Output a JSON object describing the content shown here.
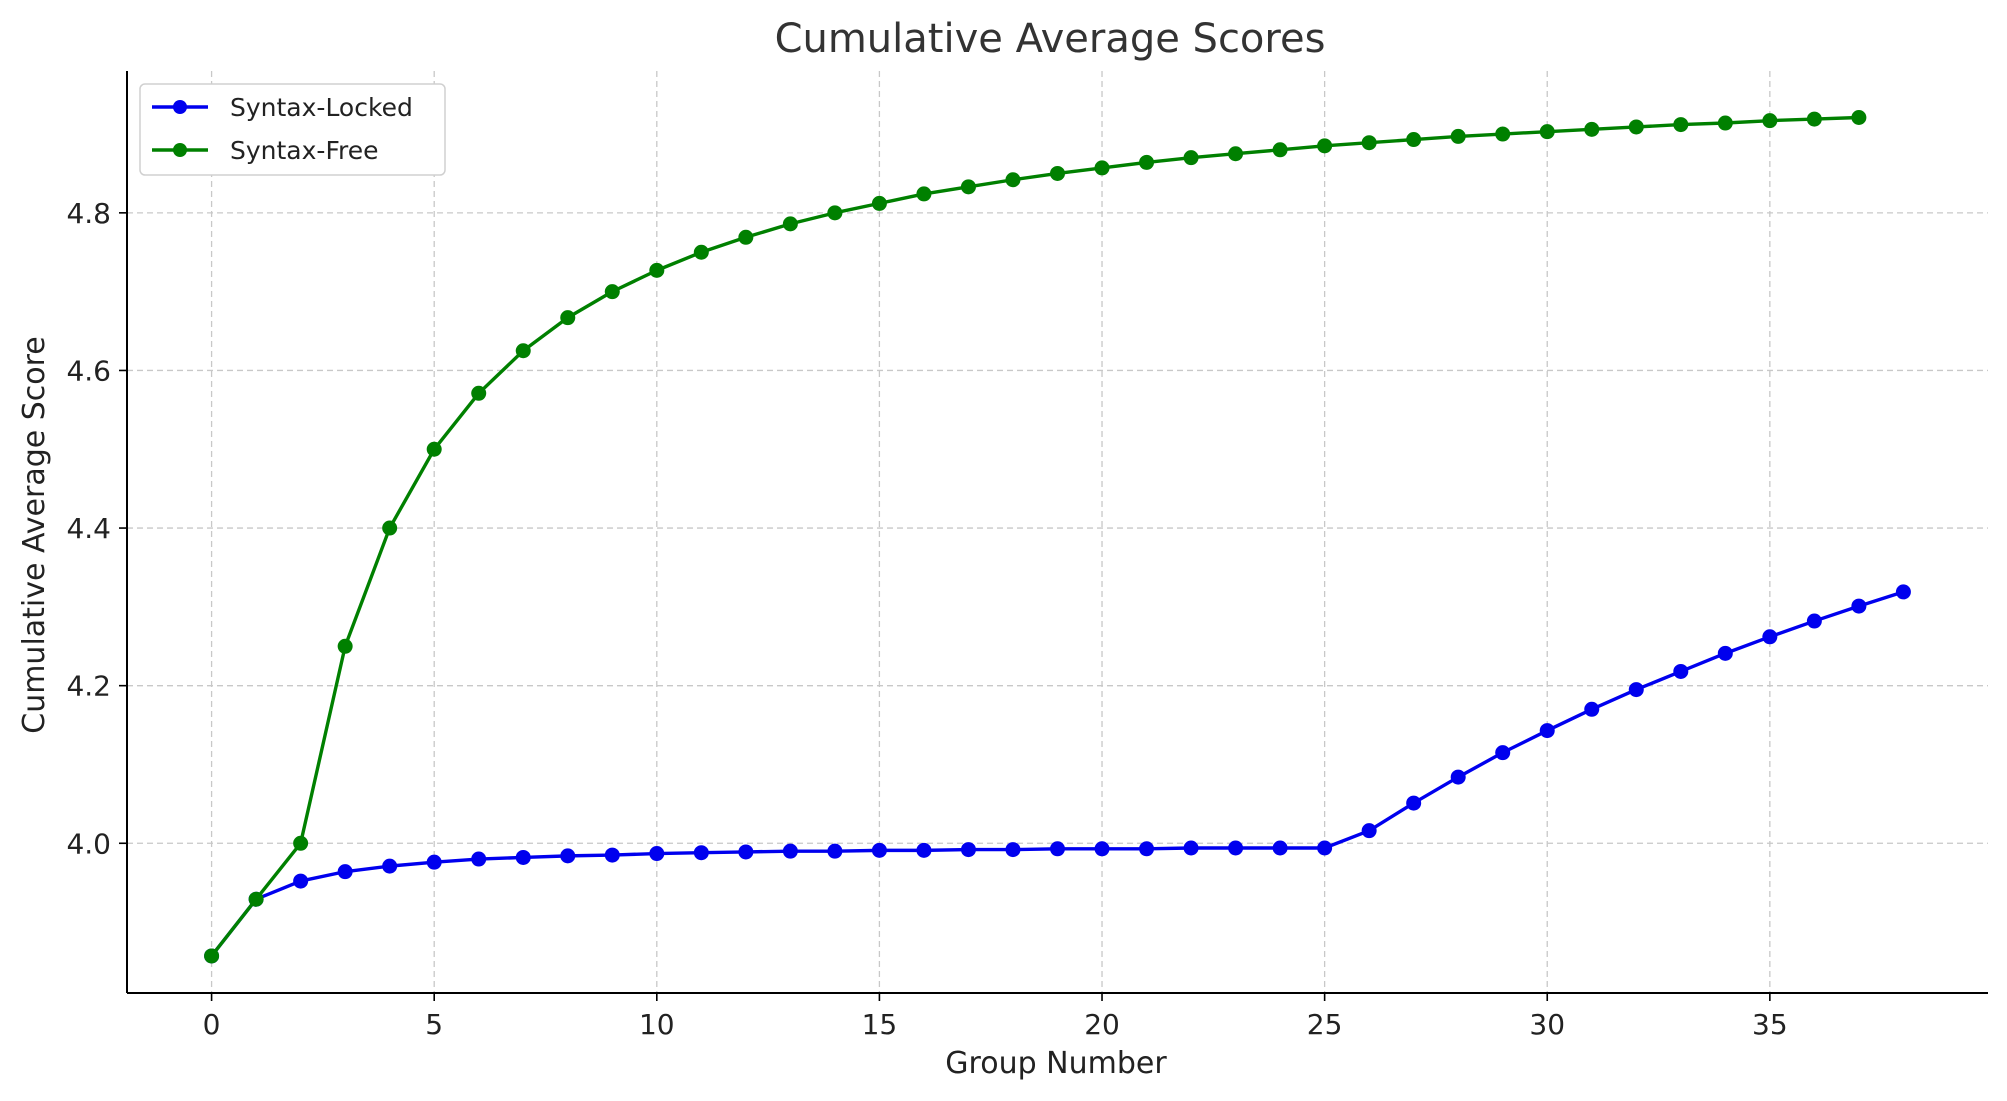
{
  "chart_data": {
    "type": "line",
    "title": "Cumulative Average Scores",
    "xlabel": "Group Number",
    "ylabel": "Cumulative Average Score",
    "xlim": [
      -1.9,
      39.9
    ],
    "ylim": [
      3.81,
      4.98
    ],
    "x_ticks": [
      0,
      5,
      10,
      15,
      20,
      25,
      30,
      35
    ],
    "y_ticks": [
      4.0,
      4.2,
      4.4,
      4.6,
      4.8
    ],
    "x_tick_labels": [
      "0",
      "5",
      "10",
      "15",
      "20",
      "25",
      "30",
      "35"
    ],
    "y_tick_labels": [
      "4.0",
      "4.2",
      "4.4",
      "4.6",
      "4.8"
    ],
    "grid": true,
    "legend_position": "top-left",
    "series": [
      {
        "name": "Syntax-Locked",
        "color": "#0000ee",
        "x": [
          0,
          1,
          2,
          3,
          4,
          5,
          6,
          7,
          8,
          9,
          10,
          11,
          12,
          13,
          14,
          15,
          16,
          17,
          18,
          19,
          20,
          21,
          22,
          23,
          24,
          25,
          26,
          27,
          28,
          29,
          30,
          31,
          32,
          33,
          34,
          35,
          36,
          37,
          38
        ],
        "values": [
          3.857,
          3.929,
          3.952,
          3.964,
          3.971,
          3.976,
          3.98,
          3.982,
          3.984,
          3.985,
          3.987,
          3.988,
          3.989,
          3.99,
          3.99,
          3.991,
          3.991,
          3.992,
          3.992,
          3.993,
          3.993,
          3.993,
          3.994,
          3.994,
          3.994,
          3.994,
          4.016,
          4.051,
          4.084,
          4.115,
          4.143,
          4.17,
          4.195,
          4.218,
          4.241,
          4.262,
          4.282,
          4.301,
          4.319
        ]
      },
      {
        "name": "Syntax-Free",
        "color": "#008000",
        "x": [
          0,
          1,
          2,
          3,
          4,
          5,
          6,
          7,
          8,
          9,
          10,
          11,
          12,
          13,
          14,
          15,
          16,
          17,
          18,
          19,
          20,
          21,
          22,
          23,
          24,
          25,
          26,
          27,
          28,
          29,
          30,
          31,
          32,
          33,
          34,
          35,
          36,
          37
        ],
        "values": [
          3.857,
          3.929,
          4.0,
          4.25,
          4.4,
          4.5,
          4.571,
          4.625,
          4.667,
          4.7,
          4.727,
          4.75,
          4.769,
          4.786,
          4.8,
          4.812,
          4.824,
          4.833,
          4.842,
          4.85,
          4.857,
          4.864,
          4.87,
          4.875,
          4.88,
          4.885,
          4.889,
          4.893,
          4.897,
          4.9,
          4.903,
          4.906,
          4.909,
          4.912,
          4.914,
          4.917,
          4.919,
          4.921
        ]
      }
    ]
  }
}
